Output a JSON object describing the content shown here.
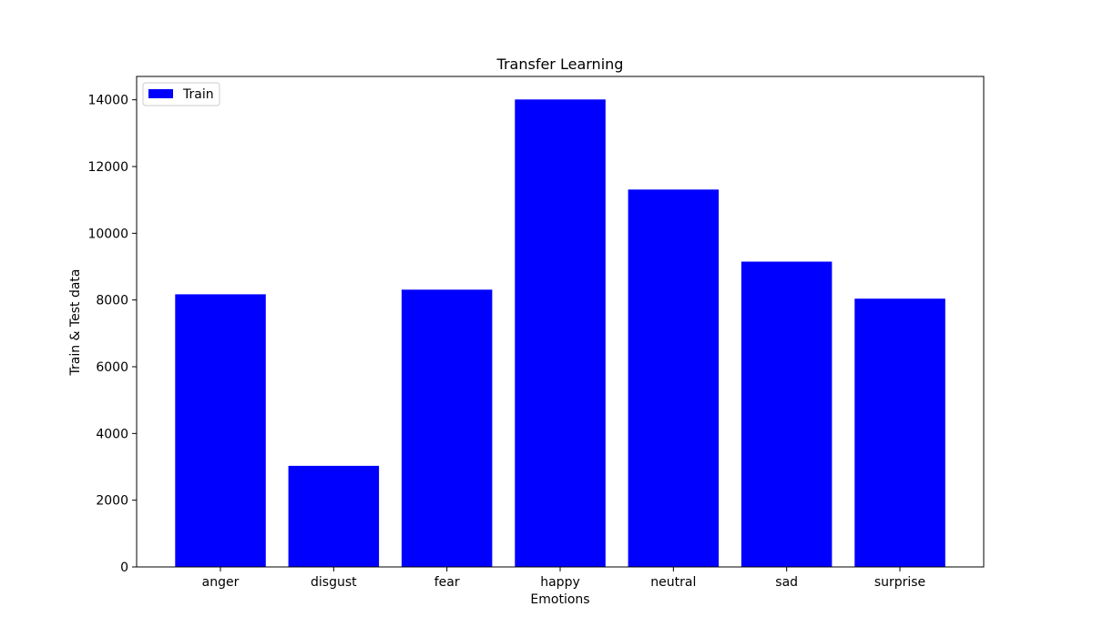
{
  "chart_data": {
    "type": "bar",
    "title": "Transfer Learning",
    "xlabel": "Emotions",
    "ylabel": "Train & Test data",
    "categories": [
      "anger",
      "disgust",
      "fear",
      "happy",
      "neutral",
      "sad",
      "surprise"
    ],
    "series": [
      {
        "name": "Train",
        "color": "#0000ff",
        "values": [
          8170,
          3030,
          8310,
          14010,
          11310,
          9150,
          8040
        ]
      }
    ],
    "ylim": [
      0,
      14700
    ],
    "yticks": [
      0,
      2000,
      4000,
      6000,
      8000,
      10000,
      12000,
      14000
    ],
    "legend_position": "top-left",
    "grid": false
  }
}
